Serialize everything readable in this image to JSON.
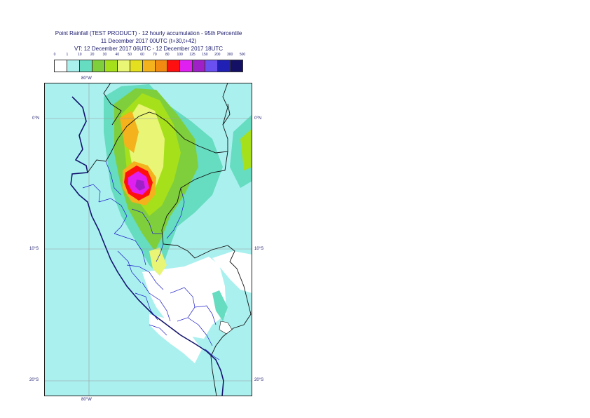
{
  "title": {
    "line1": "Point Rainfall (TEST PRODUCT) - 12 hourly accumulation - 95th Percentile",
    "line2": "11 December 2017 00UTC (t+30,t+42)",
    "line3": "VT: 12 December 2017 06UTC - 12 December 2017 18UTC"
  },
  "legend": {
    "labels": [
      "0",
      "1",
      "10",
      "20",
      "30",
      "40",
      "50",
      "60",
      "70",
      "80",
      "100",
      "125",
      "150",
      "200",
      "300",
      "500"
    ],
    "colors": [
      "#ffffff",
      "#aaf0ef",
      "#66dcc0",
      "#7fcf3c",
      "#a6e01a",
      "#e8f575",
      "#e4e020",
      "#f4b21c",
      "#f28a12",
      "#ff1010",
      "#e020f0",
      "#a020c8",
      "#6a50f0",
      "#2020b4",
      "#141066"
    ]
  },
  "map": {
    "lat_labels_left": [
      "0°N",
      "10°S",
      "20°S"
    ],
    "lat_labels_right": [
      "0°N",
      "10°S",
      "20°S"
    ],
    "lon_label_top": "80°W",
    "lon_label_bottom": "80°W",
    "colors": {
      "ocean_rain": "#aaf0ef",
      "coast": "#14146e",
      "border_black": "#111111",
      "admin_blue": "#1c1cc8",
      "grid": "#9a9a9a"
    }
  }
}
